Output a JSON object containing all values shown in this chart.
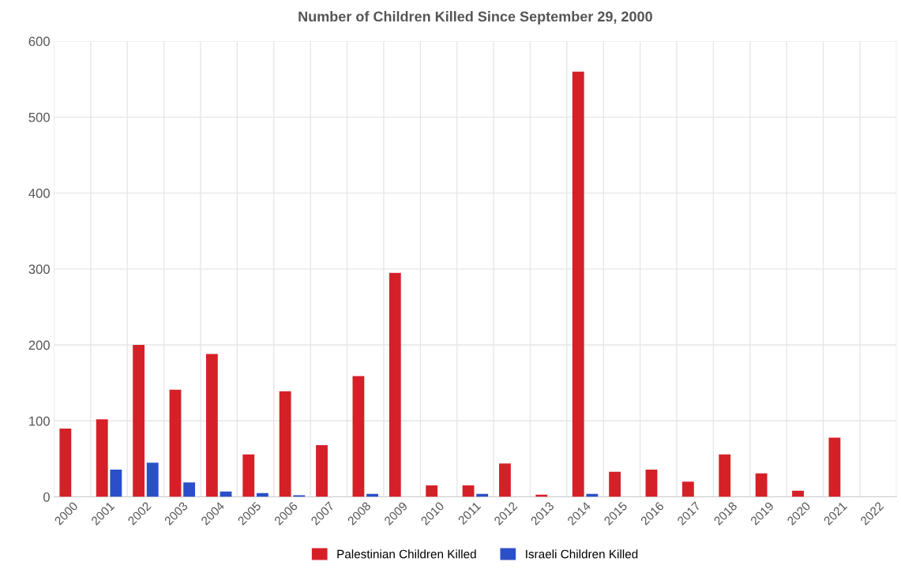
{
  "chart_data": {
    "type": "bar",
    "title": "Number of Children Killed Since September 29, 2000",
    "categories": [
      "2000",
      "2001",
      "2002",
      "2003",
      "2004",
      "2005",
      "2006",
      "2007",
      "2008",
      "2009",
      "2010",
      "2011",
      "2012",
      "2013",
      "2014",
      "2015",
      "2016",
      "2017",
      "2018",
      "2019",
      "2020",
      "2021",
      "2022"
    ],
    "series": [
      {
        "name": "Palestinian Children Killed",
        "color": "#d62028",
        "values": [
          90,
          102,
          200,
          141,
          188,
          56,
          139,
          68,
          159,
          295,
          15,
          15,
          44,
          3,
          560,
          33,
          36,
          20,
          56,
          31,
          8,
          78,
          0
        ]
      },
      {
        "name": "Israeli Children Killed",
        "color": "#2a4fc8",
        "values": [
          0,
          36,
          45,
          19,
          7,
          5,
          2,
          0,
          4,
          0,
          0,
          4,
          0,
          0,
          4,
          0,
          0,
          0,
          0,
          0,
          0,
          0,
          0
        ]
      }
    ],
    "ylim": [
      0,
      600
    ],
    "yticks": [
      0,
      100,
      200,
      300,
      400,
      500,
      600
    ],
    "grid": true,
    "legend": "bottom"
  }
}
